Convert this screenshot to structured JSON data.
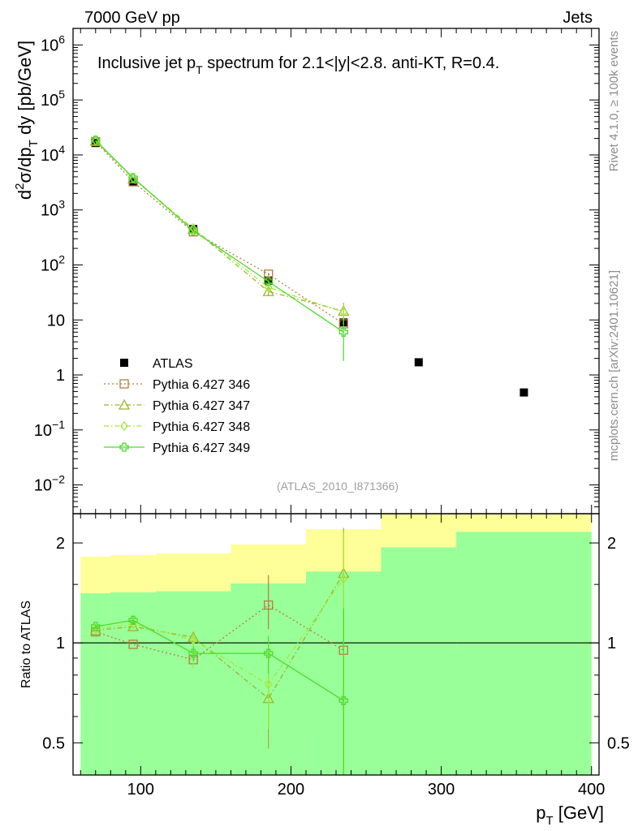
{
  "header": {
    "left": "7000 GeV pp",
    "right": "Jets"
  },
  "side_labels": {
    "rivet": "Rivet 4.1.0, ≥ 100k events",
    "mcplots": "mcplots.cern.ch [arXiv:2401.10621]"
  },
  "chart_data": [
    {
      "type": "scatter",
      "title_parts": {
        "a": "Inclusive jet p",
        "sub": "T",
        "b": " spectrum for 2.1<|y|<2.8.  anti-KT, R=0.4."
      },
      "ylabel_parts": {
        "a": "d",
        "sup": "2",
        "b": "σ/dp",
        "sub": "T",
        "c": " dy [pb/GeV]"
      },
      "yscale": "log",
      "xlim": [
        55,
        405
      ],
      "ylim": [
        0.003,
        2000000
      ],
      "y_ticks": [
        {
          "v": 1000000,
          "base": "10",
          "exp": "6"
        },
        {
          "v": 100000,
          "base": "10",
          "exp": "5"
        },
        {
          "v": 10000,
          "base": "10",
          "exp": "4"
        },
        {
          "v": 1000,
          "base": "10",
          "exp": "3"
        },
        {
          "v": 100,
          "base": "10",
          "exp": "2"
        },
        {
          "v": 10,
          "base": "10",
          "exp": ""
        },
        {
          "v": 1,
          "base": "1",
          "exp": ""
        },
        {
          "v": 0.1,
          "base": "10",
          "exp": "−1"
        },
        {
          "v": 0.01,
          "base": "10",
          "exp": "−2"
        }
      ],
      "watermark": "(ATLAS_2010_I871366)",
      "legend_position": "lower-left",
      "series": [
        {
          "name": "ATLAS",
          "color": "#000000",
          "marker": "square-filled",
          "x": [
            70,
            95,
            135,
            185,
            235,
            285,
            355
          ],
          "y": [
            16500,
            3300,
            450,
            52,
            9.0,
            1.7,
            0.48
          ]
        },
        {
          "name": "Pythia 6.427 346",
          "color": "#b57e3f",
          "marker": "square-open",
          "line": "dotted",
          "x": [
            70,
            95,
            135,
            185,
            235
          ],
          "y": [
            17500,
            3250,
            400,
            68,
            8.5
          ],
          "err": [
            0,
            0,
            0,
            4,
            0
          ]
        },
        {
          "name": "Pythia 6.427 347",
          "color": "#9ab52e",
          "marker": "triangle-open",
          "line": "dashdot",
          "x": [
            70,
            95,
            135,
            185,
            235
          ],
          "y": [
            18000,
            3700,
            450,
            33,
            14.5
          ],
          "err": [
            0,
            0,
            0,
            6,
            6
          ]
        },
        {
          "name": "Pythia 6.427 348",
          "color": "#a5e83c",
          "marker": "diamond-open",
          "line": "dashdot",
          "x": [
            70,
            95,
            135,
            185,
            235
          ],
          "y": [
            18200,
            3750,
            460,
            39,
            14
          ],
          "err": [
            0,
            0,
            0,
            5,
            5
          ]
        },
        {
          "name": "Pythia 6.427 349",
          "color": "#4cdc2a",
          "marker": "cross-open",
          "line": "solid",
          "x": [
            70,
            95,
            135,
            185,
            235
          ],
          "y": [
            18500,
            3850,
            420,
            50,
            6.0
          ],
          "err": [
            0,
            0,
            0,
            5,
            4.2
          ]
        }
      ]
    },
    {
      "type": "scatter",
      "ylabel": "Ratio to ATLAS",
      "xlabel_parts": {
        "a": "p",
        "sub": "T",
        "b": " [GeV]"
      },
      "yscale": "log",
      "xlim": [
        55,
        405
      ],
      "ylim": [
        0.4,
        2.45
      ],
      "x_ticks": [
        {
          "v": 100,
          "label": "100"
        },
        {
          "v": 200,
          "label": "200"
        },
        {
          "v": 300,
          "label": "300"
        },
        {
          "v": 400,
          "label": "400"
        }
      ],
      "y_ticks": [
        {
          "v": 0.5,
          "label": "0.5"
        },
        {
          "v": 1,
          "label": "1"
        },
        {
          "v": 2,
          "label": "2"
        }
      ],
      "reference_line": 1,
      "bands": {
        "outer_color": "#ffff99",
        "inner_color": "#99ff99",
        "bins": [
          {
            "x0": 60,
            "x1": 80,
            "outer": [
              0.64,
              1.82
            ],
            "inner": [
              0.4,
              1.41
            ]
          },
          {
            "x0": 80,
            "x1": 110,
            "outer": [
              0.63,
              1.84
            ],
            "inner": [
              0.4,
              1.42
            ]
          },
          {
            "x0": 110,
            "x1": 160,
            "outer": [
              0.62,
              1.86
            ],
            "inner": [
              0.4,
              1.43
            ]
          },
          {
            "x0": 160,
            "x1": 210,
            "outer": [
              0.52,
              1.98
            ],
            "inner": [
              0.4,
              1.51
            ]
          },
          {
            "x0": 210,
            "x1": 260,
            "outer": [
              0.4,
              2.2
            ],
            "inner": [
              0.4,
              1.64
            ]
          },
          {
            "x0": 260,
            "x1": 310,
            "outer": [
              0.4,
              2.45
            ],
            "inner": [
              0.4,
              1.94
            ]
          },
          {
            "x0": 310,
            "x1": 400,
            "outer": [
              0.4,
              2.45
            ],
            "inner": [
              0.4,
              2.16
            ]
          }
        ]
      },
      "series": [
        {
          "name": "Pythia 6.427 346",
          "color": "#b57e3f",
          "marker": "square-open",
          "line": "dotted",
          "x": [
            70,
            95,
            135,
            185,
            235
          ],
          "y": [
            1.08,
            0.99,
            0.89,
            1.3,
            0.95
          ],
          "err_lo": [
            0,
            0,
            0,
            0.2,
            0
          ],
          "err_hi": [
            0,
            0,
            0,
            0.3,
            0
          ]
        },
        {
          "name": "Pythia 6.427 347",
          "color": "#9ab52e",
          "marker": "triangle-open",
          "line": "dashdot",
          "x": [
            70,
            95,
            135,
            185,
            235
          ],
          "y": [
            1.09,
            1.12,
            1.04,
            0.68,
            1.62
          ],
          "err_lo": [
            0,
            0,
            0,
            0.2,
            1.2
          ],
          "err_hi": [
            0,
            0,
            0,
            0.2,
            0.6
          ]
        },
        {
          "name": "Pythia 6.427 348",
          "color": "#a5e83c",
          "marker": "diamond-open",
          "line": "dashdot",
          "x": [
            70,
            95,
            135,
            185,
            235
          ],
          "y": [
            1.1,
            1.14,
            1.02,
            0.75,
            1.56
          ],
          "err_lo": [
            0,
            0,
            0.18,
            0.2,
            1.2
          ],
          "err_hi": [
            0,
            0,
            0.05,
            0.2,
            0.6
          ]
        },
        {
          "name": "Pythia 6.427 349",
          "color": "#4cdc2a",
          "marker": "cross-open",
          "line": "solid",
          "x": [
            70,
            95,
            135,
            185,
            235
          ],
          "y": [
            1.12,
            1.17,
            0.93,
            0.93,
            0.67
          ],
          "err_lo": [
            0.02,
            0.03,
            0.05,
            0.12,
            0.3
          ],
          "err_hi": [
            0.02,
            0.03,
            0.05,
            0.12,
            0.6
          ]
        }
      ]
    }
  ]
}
